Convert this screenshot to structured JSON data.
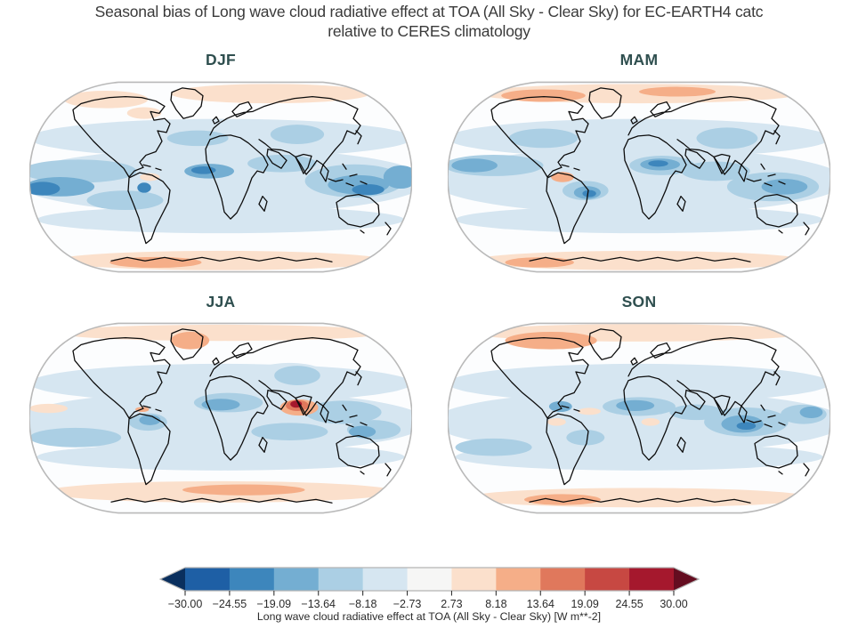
{
  "title": {
    "line1": "Seasonal bias of Long wave cloud radiative effect at TOA (All Sky - Clear Sky) for EC-EARTH4 catc",
    "line2": "relative to CERES climatology"
  },
  "styles": {
    "title_color": "#3a3a3a",
    "panel_title_color": "#2f4f4f",
    "map_outline_color": "#b9b9b9",
    "coast_color": "#0d0d0d",
    "map_base_color": "#fcfdfe",
    "tick_color": "#333333",
    "tick_label_color": "#2b2b2b"
  },
  "chart_data": {
    "type": "heatmap",
    "subtype": "filled-contour world maps",
    "projection": "Robinson",
    "title": "Seasonal bias of Long wave cloud radiative effect at TOA (All Sky - Clear Sky) for EC-EARTH4 catc relative to CERES climatology",
    "value_range": [
      -30,
      30
    ],
    "units": "W m**-2",
    "colormap": "RdBu_r",
    "legend_position": "bottom",
    "colorbar": {
      "label": "Long wave cloud radiative effect at TOA (All Sky - Clear Sky) [W m**-2]",
      "orientation": "horizontal",
      "extend": "both",
      "tick_labels": [
        "−30.00",
        "−24.55",
        "−19.09",
        "−13.64",
        "−8.18",
        "−2.73",
        "2.73",
        "8.18",
        "13.64",
        "19.09",
        "24.55",
        "30.00"
      ],
      "tick_values": [
        -30.0,
        -24.55,
        -19.09,
        -13.64,
        -8.18,
        -2.73,
        2.73,
        8.18,
        13.64,
        19.09,
        24.55,
        30.0
      ],
      "segment_colors": [
        "#1e5fa5",
        "#3d86bc",
        "#74aed2",
        "#abcfe4",
        "#d6e6f1",
        "#f6f6f5",
        "#fbe0cc",
        "#f5ae88",
        "#e0785c",
        "#c74842",
        "#a5182d"
      ],
      "extend_left_color": "#0a2f5e",
      "extend_right_color": "#640d20"
    },
    "level_colors": {
      "-5": "#1e5fa5",
      "-4": "#3d86bc",
      "-3": "#74aed2",
      "-2": "#abcfe4",
      "-1": "#d6e6f1",
      "0": "#f6f6f5",
      "1": "#fbe0cc",
      "2": "#f5ae88",
      "3": "#e0785c",
      "4": "#c74842",
      "5": "#a5182d",
      "6": "#640d20"
    },
    "panels": [
      {
        "label": "DJF",
        "notable": "Widespread weak negative bias over tropical and midlatitude oceans; strongest negative bias off Peru, equatorial Atlantic and Maritime Continent / N Australia; weak positive bias along Arctic rim, NW Canada and Antarctic coast.",
        "regions": [
          {
            "x": 0.5,
            "y": 0.3,
            "rx": 0.5,
            "ry": 0.1,
            "l": -1
          },
          {
            "x": 0.5,
            "y": 0.52,
            "rx": 0.54,
            "ry": 0.17,
            "l": -1
          },
          {
            "x": 0.5,
            "y": 0.72,
            "rx": 0.48,
            "ry": 0.07,
            "l": -1
          },
          {
            "x": 0.13,
            "y": 0.47,
            "rx": 0.15,
            "ry": 0.06,
            "l": -2
          },
          {
            "x": 0.44,
            "y": 0.3,
            "rx": 0.08,
            "ry": 0.04,
            "l": -2
          },
          {
            "x": 0.7,
            "y": 0.28,
            "rx": 0.07,
            "ry": 0.05,
            "l": -2
          },
          {
            "x": 0.66,
            "y": 0.43,
            "rx": 0.09,
            "ry": 0.045,
            "l": -2
          },
          {
            "x": 0.85,
            "y": 0.52,
            "rx": 0.13,
            "ry": 0.085,
            "l": -2
          },
          {
            "x": 0.25,
            "y": 0.62,
            "rx": 0.1,
            "ry": 0.05,
            "l": -2
          },
          {
            "x": 0.08,
            "y": 0.55,
            "rx": 0.09,
            "ry": 0.05,
            "l": -3
          },
          {
            "x": 0.47,
            "y": 0.47,
            "rx": 0.065,
            "ry": 0.038,
            "l": -3
          },
          {
            "x": 0.86,
            "y": 0.54,
            "rx": 0.08,
            "ry": 0.05,
            "l": -3
          },
          {
            "x": 0.97,
            "y": 0.5,
            "rx": 0.045,
            "ry": 0.06,
            "l": -3
          },
          {
            "x": 0.035,
            "y": 0.56,
            "rx": 0.045,
            "ry": 0.035,
            "l": -4
          },
          {
            "x": 0.455,
            "y": 0.465,
            "rx": 0.032,
            "ry": 0.02,
            "l": -4
          },
          {
            "x": 0.885,
            "y": 0.565,
            "rx": 0.042,
            "ry": 0.028,
            "l": -4
          },
          {
            "x": 0.3,
            "y": 0.555,
            "rx": 0.018,
            "ry": 0.026,
            "l": -4
          },
          {
            "x": 0.63,
            "y": 0.07,
            "rx": 0.26,
            "ry": 0.05,
            "l": 1
          },
          {
            "x": 0.2,
            "y": 0.1,
            "rx": 0.11,
            "ry": 0.045,
            "l": 1
          },
          {
            "x": 0.3,
            "y": 0.17,
            "rx": 0.045,
            "ry": 0.03,
            "l": 1
          },
          {
            "x": 0.315,
            "y": 0.5,
            "rx": 0.026,
            "ry": 0.02,
            "l": 1
          },
          {
            "x": 0.5,
            "y": 0.93,
            "rx": 0.43,
            "ry": 0.05,
            "l": 1
          },
          {
            "x": 0.33,
            "y": 0.94,
            "rx": 0.12,
            "ry": 0.028,
            "l": 2
          }
        ]
      },
      {
        "label": "MAM",
        "notable": "Strong negative bias over West Africa / Sahel and central Brazil; moderate negative bias over tropical oceans; positive bias over Arctic rim, Peru coast and Antarctic coastal zone.",
        "regions": [
          {
            "x": 0.5,
            "y": 0.3,
            "rx": 0.5,
            "ry": 0.1,
            "l": -1
          },
          {
            "x": 0.5,
            "y": 0.52,
            "rx": 0.54,
            "ry": 0.17,
            "l": -1
          },
          {
            "x": 0.5,
            "y": 0.72,
            "rx": 0.48,
            "ry": 0.07,
            "l": -1
          },
          {
            "x": 0.12,
            "y": 0.44,
            "rx": 0.13,
            "ry": 0.055,
            "l": -2
          },
          {
            "x": 0.25,
            "y": 0.3,
            "rx": 0.09,
            "ry": 0.05,
            "l": -2
          },
          {
            "x": 0.73,
            "y": 0.3,
            "rx": 0.08,
            "ry": 0.055,
            "l": -2
          },
          {
            "x": 0.7,
            "y": 0.47,
            "rx": 0.09,
            "ry": 0.05,
            "l": -2
          },
          {
            "x": 0.85,
            "y": 0.55,
            "rx": 0.12,
            "ry": 0.075,
            "l": -2
          },
          {
            "x": 0.36,
            "y": 0.57,
            "rx": 0.06,
            "ry": 0.05,
            "l": -2
          },
          {
            "x": 0.56,
            "y": 0.44,
            "rx": 0.085,
            "ry": 0.05,
            "l": -2
          },
          {
            "x": 0.07,
            "y": 0.44,
            "rx": 0.06,
            "ry": 0.035,
            "l": -3
          },
          {
            "x": 0.555,
            "y": 0.435,
            "rx": 0.052,
            "ry": 0.03,
            "l": -3
          },
          {
            "x": 0.365,
            "y": 0.58,
            "rx": 0.035,
            "ry": 0.033,
            "l": -3
          },
          {
            "x": 0.88,
            "y": 0.55,
            "rx": 0.06,
            "ry": 0.04,
            "l": -3
          },
          {
            "x": 0.55,
            "y": 0.43,
            "rx": 0.026,
            "ry": 0.016,
            "l": -4
          },
          {
            "x": 0.37,
            "y": 0.585,
            "rx": 0.018,
            "ry": 0.018,
            "l": -4
          },
          {
            "x": 0.5,
            "y": 0.07,
            "rx": 0.42,
            "ry": 0.05,
            "l": 1
          },
          {
            "x": 0.25,
            "y": 0.08,
            "rx": 0.11,
            "ry": 0.032,
            "l": 2
          },
          {
            "x": 0.6,
            "y": 0.06,
            "rx": 0.1,
            "ry": 0.025,
            "l": 2
          },
          {
            "x": 0.5,
            "y": 0.93,
            "rx": 0.43,
            "ry": 0.05,
            "l": 1
          },
          {
            "x": 0.24,
            "y": 0.94,
            "rx": 0.09,
            "ry": 0.026,
            "l": 2
          },
          {
            "x": 0.3,
            "y": 0.5,
            "rx": 0.03,
            "ry": 0.026,
            "l": 2
          }
        ]
      },
      {
        "label": "JJA",
        "notable": "Strong positive (red) bias spot over Bay of Bengal / SE Asia; negative bias over Sahara, Central Asia and NW South America; positive bias over Greenland, Arctic rim and a Southern Ocean band.",
        "regions": [
          {
            "x": 0.5,
            "y": 0.32,
            "rx": 0.5,
            "ry": 0.1,
            "l": -1
          },
          {
            "x": 0.5,
            "y": 0.52,
            "rx": 0.54,
            "ry": 0.16,
            "l": -1
          },
          {
            "x": 0.5,
            "y": 0.7,
            "rx": 0.48,
            "ry": 0.07,
            "l": -1
          },
          {
            "x": 0.68,
            "y": 0.3,
            "rx": 0.11,
            "ry": 0.085,
            "l": -1
          },
          {
            "x": 0.52,
            "y": 0.42,
            "rx": 0.09,
            "ry": 0.05,
            "l": -2
          },
          {
            "x": 0.7,
            "y": 0.28,
            "rx": 0.06,
            "ry": 0.05,
            "l": -2
          },
          {
            "x": 0.82,
            "y": 0.47,
            "rx": 0.1,
            "ry": 0.06,
            "l": -2
          },
          {
            "x": 0.9,
            "y": 0.56,
            "rx": 0.07,
            "ry": 0.05,
            "l": -2
          },
          {
            "x": 0.68,
            "y": 0.57,
            "rx": 0.1,
            "ry": 0.045,
            "l": -2
          },
          {
            "x": 0.12,
            "y": 0.6,
            "rx": 0.12,
            "ry": 0.05,
            "l": -2
          },
          {
            "x": 0.31,
            "y": 0.52,
            "rx": 0.05,
            "ry": 0.045,
            "l": -2
          },
          {
            "x": 0.5,
            "y": 0.43,
            "rx": 0.05,
            "ry": 0.03,
            "l": -3
          },
          {
            "x": 0.315,
            "y": 0.51,
            "rx": 0.028,
            "ry": 0.026,
            "l": -3
          },
          {
            "x": 0.87,
            "y": 0.57,
            "rx": 0.035,
            "ry": 0.03,
            "l": -3
          },
          {
            "x": 0.5,
            "y": 0.06,
            "rx": 0.43,
            "ry": 0.042,
            "l": 1
          },
          {
            "x": 0.42,
            "y": 0.1,
            "rx": 0.05,
            "ry": 0.045,
            "l": 2
          },
          {
            "x": 0.5,
            "y": 0.88,
            "rx": 0.46,
            "ry": 0.055,
            "l": 1
          },
          {
            "x": 0.56,
            "y": 0.87,
            "rx": 0.16,
            "ry": 0.028,
            "l": 2
          },
          {
            "x": 0.05,
            "y": 0.45,
            "rx": 0.05,
            "ry": 0.024,
            "l": 1
          },
          {
            "x": 0.295,
            "y": 0.455,
            "rx": 0.018,
            "ry": 0.013,
            "l": 2
          },
          {
            "x": 0.705,
            "y": 0.445,
            "rx": 0.05,
            "ry": 0.042,
            "l": 2
          },
          {
            "x": 0.7,
            "y": 0.435,
            "rx": 0.03,
            "ry": 0.028,
            "l": 3
          },
          {
            "x": 0.697,
            "y": 0.428,
            "rx": 0.015,
            "ry": 0.018,
            "l": 5
          }
        ]
      },
      {
        "label": "SON",
        "notable": "Negative bias over tropical Atlantic off West Africa and over the Maritime Continent; positive bias over Arctic rim (strong over N Canada), Southern Ocean band, Peru and Congo spots.",
        "regions": [
          {
            "x": 0.5,
            "y": 0.32,
            "rx": 0.5,
            "ry": 0.1,
            "l": -1
          },
          {
            "x": 0.5,
            "y": 0.52,
            "rx": 0.54,
            "ry": 0.16,
            "l": -1
          },
          {
            "x": 0.5,
            "y": 0.7,
            "rx": 0.48,
            "ry": 0.07,
            "l": -1
          },
          {
            "x": 0.22,
            "y": 0.35,
            "rx": 0.08,
            "ry": 0.05,
            "l": -1
          },
          {
            "x": 0.5,
            "y": 0.44,
            "rx": 0.095,
            "ry": 0.048,
            "l": -2
          },
          {
            "x": 0.78,
            "y": 0.52,
            "rx": 0.11,
            "ry": 0.075,
            "l": -2
          },
          {
            "x": 0.93,
            "y": 0.48,
            "rx": 0.06,
            "ry": 0.05,
            "l": -2
          },
          {
            "x": 0.65,
            "y": 0.47,
            "rx": 0.07,
            "ry": 0.04,
            "l": -2
          },
          {
            "x": 0.36,
            "y": 0.6,
            "rx": 0.05,
            "ry": 0.04,
            "l": -2
          },
          {
            "x": 0.12,
            "y": 0.65,
            "rx": 0.1,
            "ry": 0.045,
            "l": -2
          },
          {
            "x": 0.49,
            "y": 0.435,
            "rx": 0.05,
            "ry": 0.028,
            "l": -3
          },
          {
            "x": 0.77,
            "y": 0.53,
            "rx": 0.055,
            "ry": 0.045,
            "l": -3
          },
          {
            "x": 0.95,
            "y": 0.47,
            "rx": 0.03,
            "ry": 0.03,
            "l": -3
          },
          {
            "x": 0.295,
            "y": 0.44,
            "rx": 0.03,
            "ry": 0.028,
            "l": -3
          },
          {
            "x": 0.78,
            "y": 0.54,
            "rx": 0.025,
            "ry": 0.02,
            "l": -4
          },
          {
            "x": 0.5,
            "y": 0.06,
            "rx": 0.44,
            "ry": 0.045,
            "l": 1
          },
          {
            "x": 0.27,
            "y": 0.1,
            "rx": 0.12,
            "ry": 0.045,
            "l": 2
          },
          {
            "x": 0.5,
            "y": 0.91,
            "rx": 0.45,
            "ry": 0.05,
            "l": 1
          },
          {
            "x": 0.3,
            "y": 0.92,
            "rx": 0.1,
            "ry": 0.028,
            "l": 2
          },
          {
            "x": 0.285,
            "y": 0.52,
            "rx": 0.024,
            "ry": 0.02,
            "l": 1
          },
          {
            "x": 0.53,
            "y": 0.52,
            "rx": 0.024,
            "ry": 0.02,
            "l": 1
          },
          {
            "x": 0.37,
            "y": 0.465,
            "rx": 0.03,
            "ry": 0.018,
            "l": 1
          }
        ]
      }
    ]
  }
}
